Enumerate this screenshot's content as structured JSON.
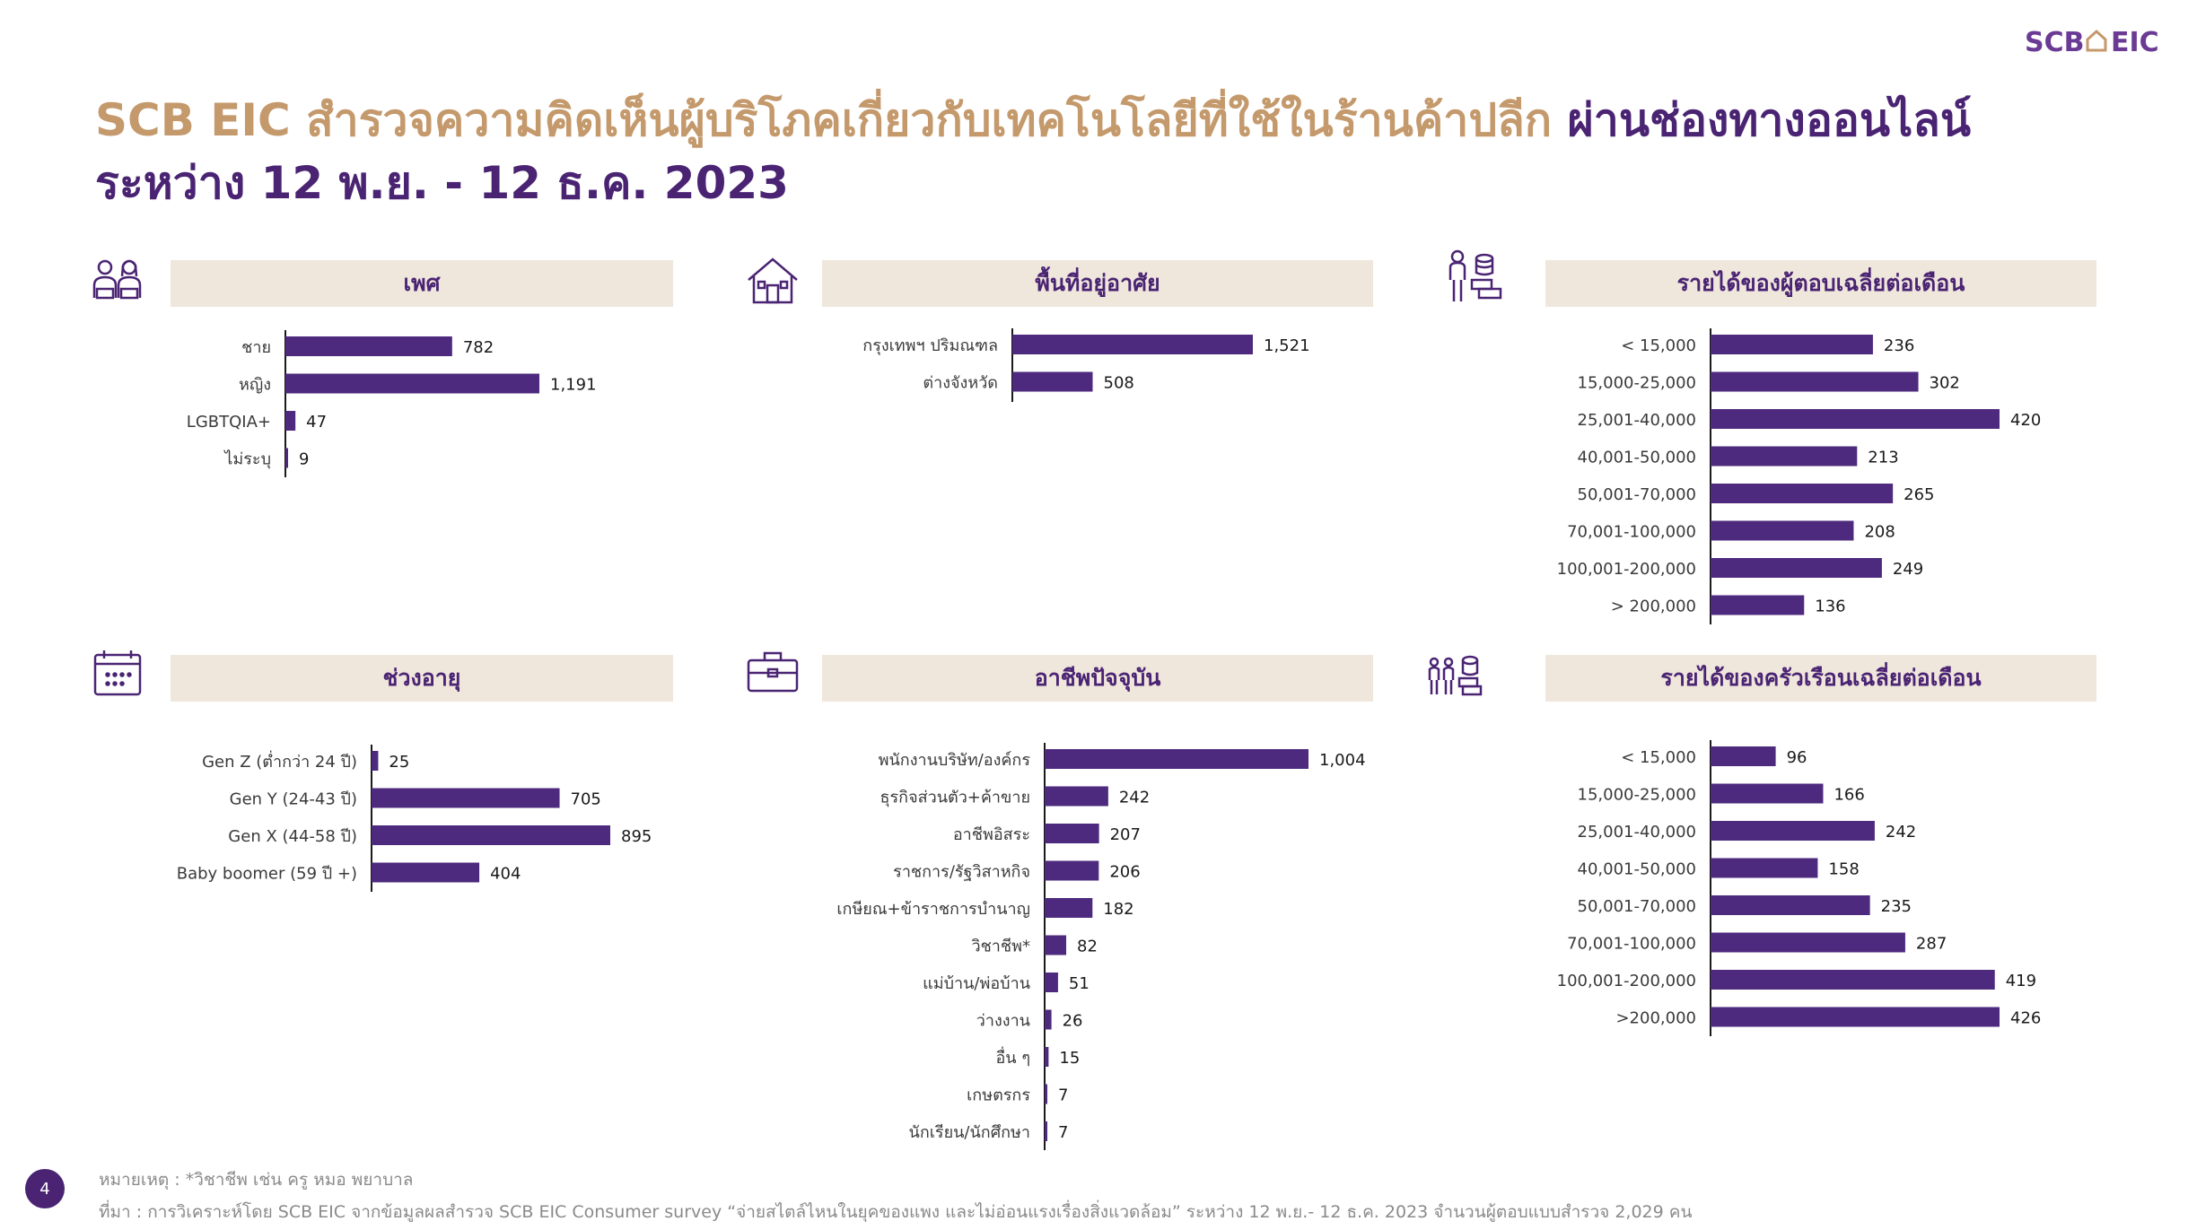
{
  "brand": {
    "logo_text_left": "SCB",
    "logo_text_right": "EIC",
    "accent": "#4a2473",
    "gold": "#c4996c",
    "bar_color": "#4e2a7e",
    "header_bg": "#efe6dc"
  },
  "header": {
    "title_gold": "SCB EIC สำรวจความคิดเห็นผู้บริโภคเกี่ยวกับเทคโนโลยีที่ใช้ในร้านค้าปลีก",
    "title_purple": "ผ่านช่องทางออนไลน์",
    "subtitle": "ระหว่าง 12 พ.ย. - 12 ธ.ค. 2023"
  },
  "panels": {
    "gender": {
      "icon": "people-icon",
      "title": "เพศ"
    },
    "residence": {
      "icon": "house-icon",
      "title": "พื้นที่อยู่อาศัย"
    },
    "personal_income": {
      "icon": "person-coins-icon",
      "title": "รายได้ของผู้ตอบเฉลี่ยต่อเดือน"
    },
    "age": {
      "icon": "calendar-icon",
      "title": "ช่วงอายุ"
    },
    "occupation": {
      "icon": "briefcase-icon",
      "title": "อาชีพปัจจุบัน"
    },
    "household_income": {
      "icon": "family-coins-icon",
      "title": "รายได้ของครัวเรือนเฉลี่ยต่อเดือน"
    }
  },
  "chart_data": [
    {
      "id": "gender",
      "type": "bar",
      "orientation": "horizontal",
      "title": "เพศ",
      "categories": [
        "ชาย",
        "หญิง",
        "LGBTQIA+",
        "ไม่ระบุ"
      ],
      "values": [
        782,
        1191,
        47,
        9
      ],
      "value_labels": [
        "782",
        "1,191",
        "47",
        "9"
      ]
    },
    {
      "id": "residence",
      "type": "bar",
      "orientation": "horizontal",
      "title": "พื้นที่อยู่อาศัย",
      "categories": [
        "กรุงเทพฯ ปริมณฑล",
        "ต่างจังหวัด"
      ],
      "values": [
        1521,
        508
      ],
      "value_labels": [
        "1,521",
        "508"
      ]
    },
    {
      "id": "personal_income",
      "type": "bar",
      "orientation": "horizontal",
      "title": "รายได้ของผู้ตอบเฉลี่ยต่อเดือน",
      "categories": [
        "< 15,000",
        "15,000-25,000",
        "25,001-40,000",
        "40,001-50,000",
        "50,001-70,000",
        "70,001-100,000",
        "100,001-200,000",
        "> 200,000"
      ],
      "values": [
        236,
        302,
        420,
        213,
        265,
        208,
        249,
        136
      ],
      "value_labels": [
        "236",
        "302",
        "420",
        "213",
        "265",
        "208",
        "249",
        "136"
      ]
    },
    {
      "id": "age",
      "type": "bar",
      "orientation": "horizontal",
      "title": "ช่วงอายุ",
      "categories": [
        "Gen Z (ต่ำกว่า 24 ปี)",
        "Gen Y (24-43 ปี)",
        "Gen X (44-58 ปี)",
        "Baby boomer (59 ปี +)"
      ],
      "values": [
        25,
        705,
        895,
        404
      ],
      "value_labels": [
        "25",
        "705",
        "895",
        "404"
      ]
    },
    {
      "id": "occupation",
      "type": "bar",
      "orientation": "horizontal",
      "title": "อาชีพปัจจุบัน",
      "categories": [
        "พนักงานบริษัท/องค์กร",
        "ธุรกิจส่วนตัว+ค้าขาย",
        "อาชีพอิสระ",
        "ราชการ/รัฐวิสาหกิจ",
        "เกษียณ+ข้าราชการบำนาญ",
        "วิชาชีพ*",
        "แม่บ้าน/พ่อบ้าน",
        "ว่างงาน",
        "อื่น ๆ",
        "เกษตรกร",
        "นักเรียน/นักศึกษา"
      ],
      "values": [
        1004,
        242,
        207,
        206,
        182,
        82,
        51,
        26,
        15,
        7,
        7
      ],
      "value_labels": [
        "1,004",
        "242",
        "207",
        "206",
        "182",
        "82",
        "51",
        "26",
        "15",
        "7",
        "7"
      ]
    },
    {
      "id": "household_income",
      "type": "bar",
      "orientation": "horizontal",
      "title": "รายได้ของครัวเรือนเฉลี่ยต่อเดือน",
      "categories": [
        "< 15,000",
        "15,000-25,000",
        "25,001-40,000",
        "40,001-50,000",
        "50,001-70,000",
        "70,001-100,000",
        "100,001-200,000",
        ">200,000"
      ],
      "values": [
        96,
        166,
        242,
        158,
        235,
        287,
        419,
        426
      ],
      "value_labels": [
        "96",
        "166",
        "242",
        "158",
        "235",
        "287",
        "419",
        "426"
      ]
    }
  ],
  "footer": {
    "page_number": "4",
    "note": "หมายเหตุ : *วิชาชีพ เช่น ครู หมอ พยาบาล",
    "source": "ที่มา : การวิเคราะห์โดย SCB EIC จากข้อมูลผลสำรวจ SCB EIC Consumer survey “จ่ายสไตล์ไหนในยุคของแพง และไม่อ่อนแรงเรื่องสิ่งแวดล้อม” ระหว่าง 12 พ.ย.- 12 ธ.ค. 2023 จำนวนผู้ตอบแบบสำรวจ 2,029 คน"
  }
}
